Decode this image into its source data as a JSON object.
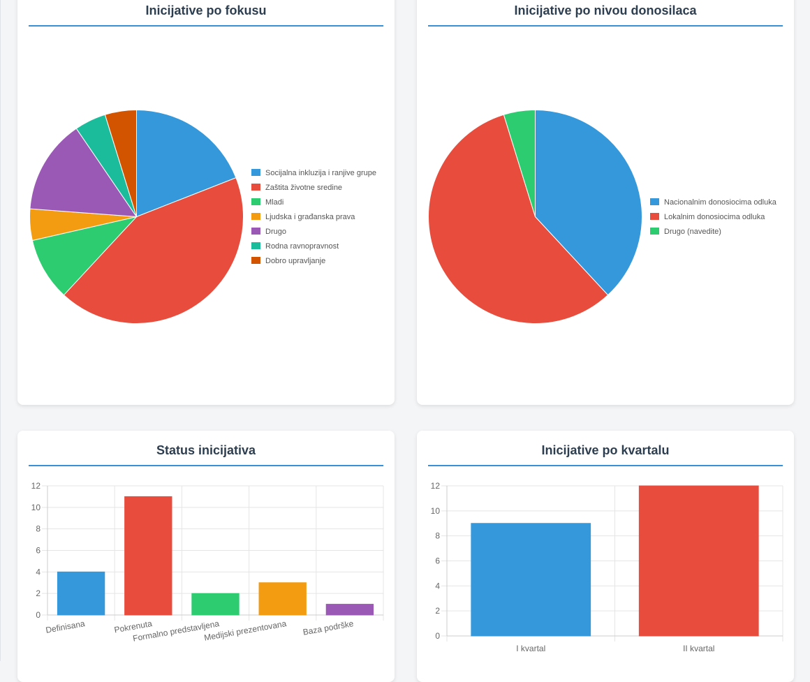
{
  "charts": {
    "focus": {
      "title": "Inicijative po fokusu",
      "chart_data": {
        "type": "pie",
        "labels": [
          "Socijalna inkluzija i ranjive grupe",
          "Zaštita životne sredine",
          "Mladi",
          "Ljudska i građanska prava",
          "Drugo",
          "Rodna ravnopravnost",
          "Dobro upravljanje"
        ],
        "values": [
          4,
          9,
          2,
          1,
          3,
          1,
          1
        ],
        "colors": [
          "#3498db",
          "#e74c3c",
          "#2ecc71",
          "#f39c12",
          "#9b59b6",
          "#1abc9c",
          "#d35400"
        ],
        "legend": "right"
      }
    },
    "level": {
      "title": "Inicijative po nivou donosilaca",
      "chart_data": {
        "type": "pie",
        "labels": [
          "Nacionalnim donosiocima odluka",
          "Lokalnim donosiocima odluka",
          "Drugo (navedite)"
        ],
        "values": [
          8,
          12,
          1
        ],
        "colors": [
          "#3498db",
          "#e74c3c",
          "#2ecc71"
        ],
        "legend": "right"
      }
    },
    "status": {
      "title": "Status inicijativa",
      "chart_data": {
        "type": "bar",
        "categories": [
          "Definisana",
          "Pokrenuta",
          "Formalno predstavljena",
          "Medijski prezentovana",
          "Baza podrške"
        ],
        "values": [
          4,
          11,
          2,
          3,
          1
        ],
        "colors": [
          "#3498db",
          "#e74c3c",
          "#2ecc71",
          "#f39c12",
          "#9b59b6"
        ],
        "ylim": [
          0,
          12
        ],
        "yticks": [
          0,
          2,
          4,
          6,
          8,
          10,
          12
        ],
        "grid": true
      }
    },
    "quarter": {
      "title": "Inicijative po kvartalu",
      "chart_data": {
        "type": "bar",
        "categories": [
          "I kvartal",
          "II kvartal"
        ],
        "values": [
          9,
          12
        ],
        "colors": [
          "#3498db",
          "#e74c3c"
        ],
        "ylim": [
          0,
          12
        ],
        "yticks": [
          0,
          2,
          4,
          6,
          8,
          10,
          12
        ],
        "grid": true
      }
    }
  }
}
